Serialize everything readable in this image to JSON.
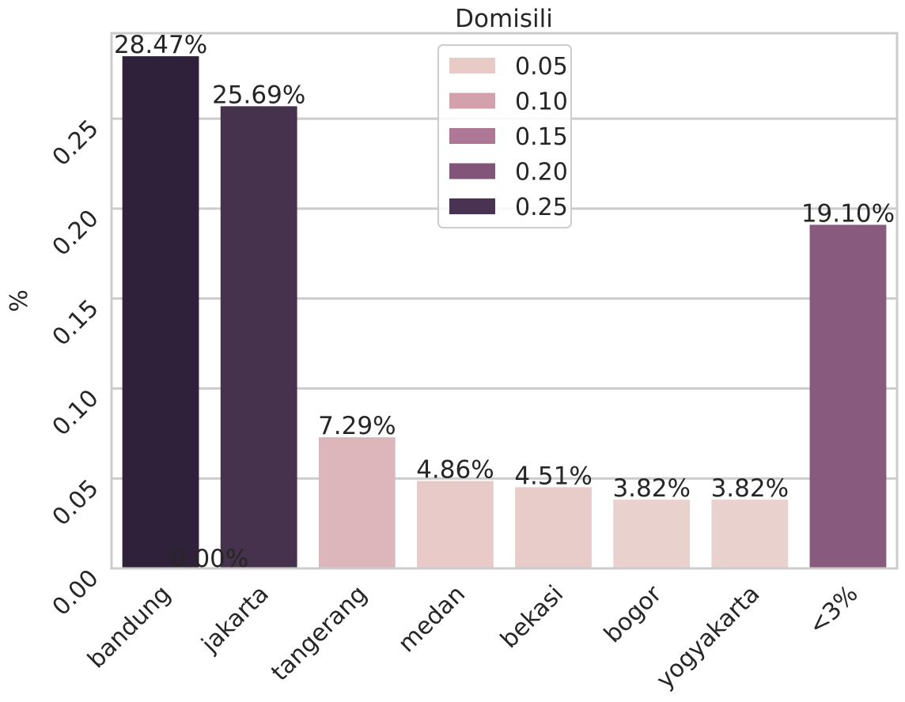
{
  "chart_data": {
    "type": "bar",
    "title": "Domisili",
    "xlabel": "",
    "ylabel": "%",
    "categories": [
      "bandung",
      "jakarta",
      "tangerang",
      "medan",
      "bekasi",
      "bogor",
      "yogyakarta",
      "<3%"
    ],
    "values": [
      0.2847,
      0.2569,
      0.0729,
      0.0486,
      0.0451,
      0.0382,
      0.0382,
      0.191
    ],
    "data_labels": [
      "28.47%",
      "25.69%",
      "7.29%",
      "4.86%",
      "4.51%",
      "3.82%",
      "3.82%",
      "19.10%"
    ],
    "extra_label": "0.00%",
    "ylim": [
      0,
      0.2975
    ],
    "yticks": [
      0.0,
      0.05,
      0.1,
      0.15,
      0.2,
      0.25
    ],
    "ytick_labels": [
      "0.00",
      "0.05",
      "0.10",
      "0.15",
      "0.20",
      "0.25"
    ],
    "grid": "y",
    "legend": {
      "placement": "upper-center",
      "entries": [
        {
          "label": "0.05",
          "color": "#e8cac6"
        },
        {
          "label": "0.10",
          "color": "#d3a1ab"
        },
        {
          "label": "0.15",
          "color": "#ad7795"
        },
        {
          "label": "0.20",
          "color": "#82547a"
        },
        {
          "label": "0.25",
          "color": "#4a3253"
        }
      ]
    },
    "bar_colors": [
      "#2f2139",
      "#47324e",
      "#dcb6ba",
      "#e8cbc8",
      "#e8ccc9",
      "#e9d1ce",
      "#e9d1ce",
      "#885a7e"
    ]
  }
}
